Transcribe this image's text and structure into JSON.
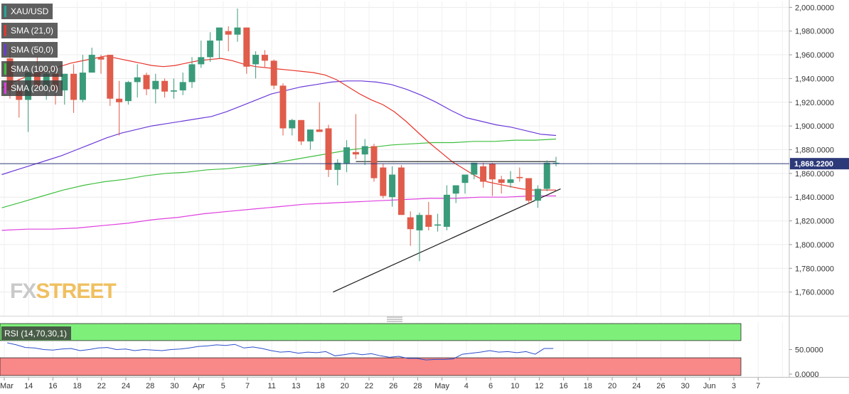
{
  "symbol": "XAU/USD",
  "indicators": [
    {
      "label": "SMA (21,0)",
      "color": "#e8352b"
    },
    {
      "label": "SMA (50,0)",
      "color": "#6b3ad8"
    },
    {
      "label": "SMA (100,0)",
      "color": "#3fbf3f"
    },
    {
      "label": "SMA (200,0)",
      "color": "#e040e0"
    }
  ],
  "rsi_label": "RSI (14,70,30,1)",
  "watermark": {
    "part1": "FX",
    "part2": "STREET"
  },
  "chart_data": {
    "type": "candlestick",
    "price_axis": {
      "range": [
        1740,
        2005
      ],
      "ticks": [
        2000,
        1980,
        1960,
        1940,
        1920,
        1900,
        1880,
        1860,
        1840,
        1820,
        1800,
        1780,
        1760
      ],
      "tick_labels": [
        "2,000.0000",
        "1,980.0000",
        "1,960.0000",
        "1,940.0000",
        "1,920.0000",
        "1,900.0000",
        "1,880.0000",
        "1,860.0000",
        "1,840.0000",
        "1,820.0000",
        "1,800.0000",
        "1,780.0000",
        "1,760.0000"
      ]
    },
    "current_price": 1868.22,
    "current_price_label": "1,868.2200",
    "x_axis_labels": [
      "Mar",
      "14",
      "16",
      "18",
      "22",
      "24",
      "28",
      "30",
      "Apr",
      "5",
      "7",
      "11",
      "13",
      "18",
      "20",
      "22",
      "26",
      "28",
      "May",
      "4",
      "6",
      "10",
      "12",
      "16",
      "18",
      "20",
      "24",
      "26",
      "30",
      "Jun",
      "3",
      "7"
    ],
    "candles": [
      {
        "o": 1957,
        "h": 1966,
        "l": 1923,
        "c": 1930
      },
      {
        "o": 1930,
        "h": 1940,
        "l": 1907,
        "c": 1922
      },
      {
        "o": 1922,
        "h": 1948,
        "l": 1895,
        "c": 1945
      },
      {
        "o": 1945,
        "h": 1958,
        "l": 1931,
        "c": 1933
      },
      {
        "o": 1933,
        "h": 1950,
        "l": 1922,
        "c": 1944
      },
      {
        "o": 1944,
        "h": 1948,
        "l": 1918,
        "c": 1930
      },
      {
        "o": 1930,
        "h": 1944,
        "l": 1918,
        "c": 1944
      },
      {
        "o": 1944,
        "h": 1952,
        "l": 1911,
        "c": 1922
      },
      {
        "o": 1922,
        "h": 1960,
        "l": 1920,
        "c": 1945
      },
      {
        "o": 1945,
        "h": 1966,
        "l": 1945,
        "c": 1960
      },
      {
        "o": 1958,
        "h": 1960,
        "l": 1944,
        "c": 1956
      },
      {
        "o": 1960,
        "h": 1960,
        "l": 1917,
        "c": 1923
      },
      {
        "o": 1923,
        "h": 1938,
        "l": 1892,
        "c": 1920
      },
      {
        "o": 1921,
        "h": 1938,
        "l": 1918,
        "c": 1937
      },
      {
        "o": 1937,
        "h": 1952,
        "l": 1924,
        "c": 1941
      },
      {
        "o": 1943,
        "h": 1945,
        "l": 1926,
        "c": 1931
      },
      {
        "o": 1931,
        "h": 1944,
        "l": 1919,
        "c": 1938
      },
      {
        "o": 1938,
        "h": 1940,
        "l": 1924,
        "c": 1929
      },
      {
        "o": 1929,
        "h": 1940,
        "l": 1923,
        "c": 1930
      },
      {
        "o": 1930,
        "h": 1945,
        "l": 1926,
        "c": 1937
      },
      {
        "o": 1937,
        "h": 1958,
        "l": 1932,
        "c": 1952
      },
      {
        "o": 1952,
        "h": 1972,
        "l": 1949,
        "c": 1958
      },
      {
        "o": 1958,
        "h": 1979,
        "l": 1954,
        "c": 1972
      },
      {
        "o": 1972,
        "h": 1983,
        "l": 1957,
        "c": 1983
      },
      {
        "o": 1980,
        "h": 1984,
        "l": 1963,
        "c": 1977
      },
      {
        "o": 1977,
        "h": 1999,
        "l": 1971,
        "c": 1983
      },
      {
        "o": 1983,
        "h": 1983,
        "l": 1944,
        "c": 1950
      },
      {
        "o": 1952,
        "h": 1963,
        "l": 1940,
        "c": 1960
      },
      {
        "o": 1960,
        "h": 1964,
        "l": 1949,
        "c": 1955
      },
      {
        "o": 1955,
        "h": 1956,
        "l": 1931,
        "c": 1934
      },
      {
        "o": 1934,
        "h": 1936,
        "l": 1892,
        "c": 1898
      },
      {
        "o": 1898,
        "h": 1906,
        "l": 1892,
        "c": 1905
      },
      {
        "o": 1905,
        "h": 1905,
        "l": 1884,
        "c": 1887
      },
      {
        "o": 1887,
        "h": 1897,
        "l": 1880,
        "c": 1897
      },
      {
        "o": 1897,
        "h": 1920,
        "l": 1895,
        "c": 1895
      },
      {
        "o": 1898,
        "h": 1901,
        "l": 1857,
        "c": 1863
      },
      {
        "o": 1863,
        "h": 1872,
        "l": 1850,
        "c": 1869
      },
      {
        "o": 1868,
        "h": 1888,
        "l": 1861,
        "c": 1882
      },
      {
        "o": 1878,
        "h": 1910,
        "l": 1872,
        "c": 1876
      },
      {
        "o": 1876,
        "h": 1889,
        "l": 1867,
        "c": 1883
      },
      {
        "o": 1883,
        "h": 1885,
        "l": 1853,
        "c": 1856
      },
      {
        "o": 1865,
        "h": 1868,
        "l": 1839,
        "c": 1841
      },
      {
        "o": 1840,
        "h": 1866,
        "l": 1832,
        "c": 1859
      },
      {
        "o": 1865,
        "h": 1867,
        "l": 1825,
        "c": 1825
      },
      {
        "o": 1823,
        "h": 1828,
        "l": 1799,
        "c": 1813
      },
      {
        "o": 1812,
        "h": 1827,
        "l": 1786,
        "c": 1825
      },
      {
        "o": 1825,
        "h": 1836,
        "l": 1812,
        "c": 1815
      },
      {
        "o": 1816,
        "h": 1826,
        "l": 1811,
        "c": 1817
      },
      {
        "o": 1815,
        "h": 1850,
        "l": 1812,
        "c": 1842
      },
      {
        "o": 1843,
        "h": 1850,
        "l": 1835,
        "c": 1850
      },
      {
        "o": 1852,
        "h": 1858,
        "l": 1843,
        "c": 1859
      },
      {
        "o": 1859,
        "h": 1869,
        "l": 1855,
        "c": 1869
      },
      {
        "o": 1866,
        "h": 1869,
        "l": 1848,
        "c": 1853
      },
      {
        "o": 1868,
        "h": 1869,
        "l": 1841,
        "c": 1855
      },
      {
        "o": 1855,
        "h": 1858,
        "l": 1843,
        "c": 1852
      },
      {
        "o": 1852,
        "h": 1862,
        "l": 1848,
        "c": 1855
      },
      {
        "o": 1857,
        "h": 1865,
        "l": 1853,
        "c": 1856
      },
      {
        "o": 1856,
        "h": 1856,
        "l": 1834,
        "c": 1837
      },
      {
        "o": 1837,
        "h": 1850,
        "l": 1831,
        "c": 1847
      },
      {
        "o": 1847,
        "h": 1871,
        "l": 1845,
        "c": 1869
      },
      {
        "o": 1869,
        "h": 1874,
        "l": 1866,
        "c": 1869
      }
    ],
    "sma_21": [
      1932,
      1937,
      1941,
      1944,
      1947,
      1950,
      1953,
      1955,
      1957,
      1959,
      1957,
      1955,
      1953,
      1951,
      1950,
      1951,
      1953,
      1955,
      1956,
      1957,
      1955,
      1952,
      1950,
      1949,
      1948,
      1947,
      1946,
      1945,
      1943,
      1939,
      1933,
      1927,
      1922,
      1918,
      1912,
      1904,
      1895,
      1886,
      1878,
      1870,
      1864,
      1858,
      1853,
      1851,
      1849,
      1847,
      1846,
      1846,
      1846
    ],
    "sma_50": [
      1859,
      1863,
      1867,
      1871,
      1875,
      1880,
      1885,
      1890,
      1894,
      1897,
      1900,
      1902,
      1904,
      1906,
      1908,
      1912,
      1917,
      1922,
      1927,
      1930,
      1933,
      1935,
      1937,
      1938,
      1938,
      1937,
      1935,
      1931,
      1926,
      1920,
      1913,
      1907,
      1904,
      1901,
      1899,
      1896,
      1893,
      1892
    ],
    "sma_100": [
      1831,
      1836,
      1841,
      1846,
      1850,
      1853,
      1855,
      1858,
      1860,
      1861,
      1863,
      1864,
      1866,
      1868,
      1871,
      1874,
      1877,
      1880,
      1882,
      1884,
      1885,
      1886,
      1886,
      1887,
      1887,
      1888,
      1888,
      1889
    ],
    "sma_200": [
      1812,
      1813,
      1813,
      1814,
      1816,
      1818,
      1821,
      1823,
      1826,
      1828,
      1830,
      1832,
      1834,
      1835,
      1836,
      1837,
      1838,
      1839,
      1839,
      1840,
      1840,
      1841,
      1841
    ],
    "trendlines": [
      {
        "label": "horizontal resistance",
        "from": [
          38,
          1870
        ],
        "to": [
          60,
          1870
        ]
      },
      {
        "label": "ascending support",
        "from": [
          35.5,
          1760
        ],
        "to": [
          60.5,
          1847
        ]
      }
    ],
    "rsi": {
      "range": [
        0,
        100
      ],
      "overbought": 70,
      "oversold": 30,
      "ticks": [
        50,
        0
      ],
      "tick_labels": [
        "50.0000",
        "0.0000"
      ],
      "values": [
        63,
        59,
        54,
        53,
        50,
        49,
        51,
        52,
        48,
        50,
        53,
        54,
        50,
        51,
        48,
        50,
        49,
        48,
        50,
        51,
        53,
        56,
        57,
        59,
        58,
        60,
        53,
        55,
        52,
        48,
        45,
        46,
        43,
        45,
        44,
        46,
        38,
        40,
        43,
        40,
        42,
        38,
        35,
        37,
        33,
        33,
        30,
        31,
        31,
        32,
        41,
        43,
        45,
        48,
        45,
        46,
        44,
        46,
        41,
        52,
        52
      ]
    }
  }
}
